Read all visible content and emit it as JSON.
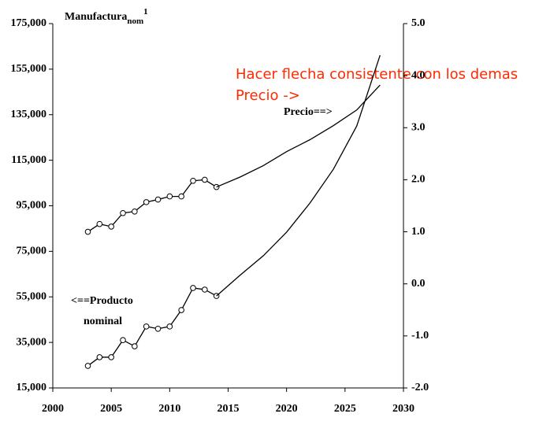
{
  "chart_data": {
    "type": "line",
    "title": "Manufactura",
    "title_sub": "nom",
    "title_sup": "1",
    "xlim": [
      2000,
      2030
    ],
    "xticks": [
      2000,
      2005,
      2010,
      2015,
      2020,
      2025,
      2030
    ],
    "ylim": [
      15000,
      175000
    ],
    "yticks": [
      {
        "value": 15000,
        "label": "15,000"
      },
      {
        "value": 35000,
        "label": "35,000"
      },
      {
        "value": 55000,
        "label": "55,000"
      },
      {
        "value": 75000,
        "label": "75,000"
      },
      {
        "value": 95000,
        "label": "95,000"
      },
      {
        "value": 115000,
        "label": "115,000"
      },
      {
        "value": 135000,
        "label": "135,000"
      },
      {
        "value": 155000,
        "label": "155,000"
      },
      {
        "value": 175000,
        "label": "175,000"
      }
    ],
    "y2lim": [
      -2,
      5
    ],
    "y2ticks": [
      {
        "value": -2,
        "label": "-2.0"
      },
      {
        "value": -1,
        "label": "-1.0"
      },
      {
        "value": 0,
        "label": "0.0"
      },
      {
        "value": 1,
        "label": "1.0"
      },
      {
        "value": 2,
        "label": "2.0"
      },
      {
        "value": 3,
        "label": "3.0"
      },
      {
        "value": 4,
        "label": "4.0"
      },
      {
        "value": 5,
        "label": "5.0"
      }
    ],
    "series": [
      {
        "axis": "y2",
        "color": "#000000",
        "markers": true,
        "x": [
          2003,
          2004,
          2005,
          2006,
          2007,
          2008,
          2009,
          2010,
          2011,
          2012,
          2013,
          2014
        ],
        "values": [
          1.0,
          1.15,
          1.1,
          1.36,
          1.39,
          1.57,
          1.62,
          1.68,
          1.68,
          1.98,
          2.0,
          1.86
        ]
      },
      {
        "axis": "y2",
        "color": "#000000",
        "markers": false,
        "x": [
          2014,
          2016,
          2018,
          2020,
          2022,
          2024,
          2026,
          2028
        ],
        "values": [
          1.86,
          2.05,
          2.27,
          2.54,
          2.77,
          3.04,
          3.34,
          3.82
        ]
      },
      {
        "axis": "y",
        "color": "#000000",
        "markers": true,
        "x": [
          2003,
          2004,
          2005,
          2006,
          2007,
          2008,
          2009,
          2010,
          2011,
          2012,
          2013,
          2014
        ],
        "values": [
          24700,
          28500,
          28500,
          36000,
          33300,
          42000,
          41000,
          42000,
          49200,
          58900,
          58200,
          55400
        ]
      },
      {
        "axis": "y",
        "color": "#000000",
        "markers": false,
        "x": [
          2014,
          2016,
          2018,
          2020,
          2022,
          2024,
          2026,
          2028
        ],
        "values": [
          55400,
          64400,
          73000,
          83400,
          96200,
          111000,
          130000,
          161100
        ]
      }
    ],
    "annotations": [
      "Precio==>",
      "<==Producto",
      "nominal"
    ],
    "notes": [
      "Hacer flecha consistente con los demas",
      "Precio ->"
    ],
    "note_color": "#ff2a00"
  }
}
